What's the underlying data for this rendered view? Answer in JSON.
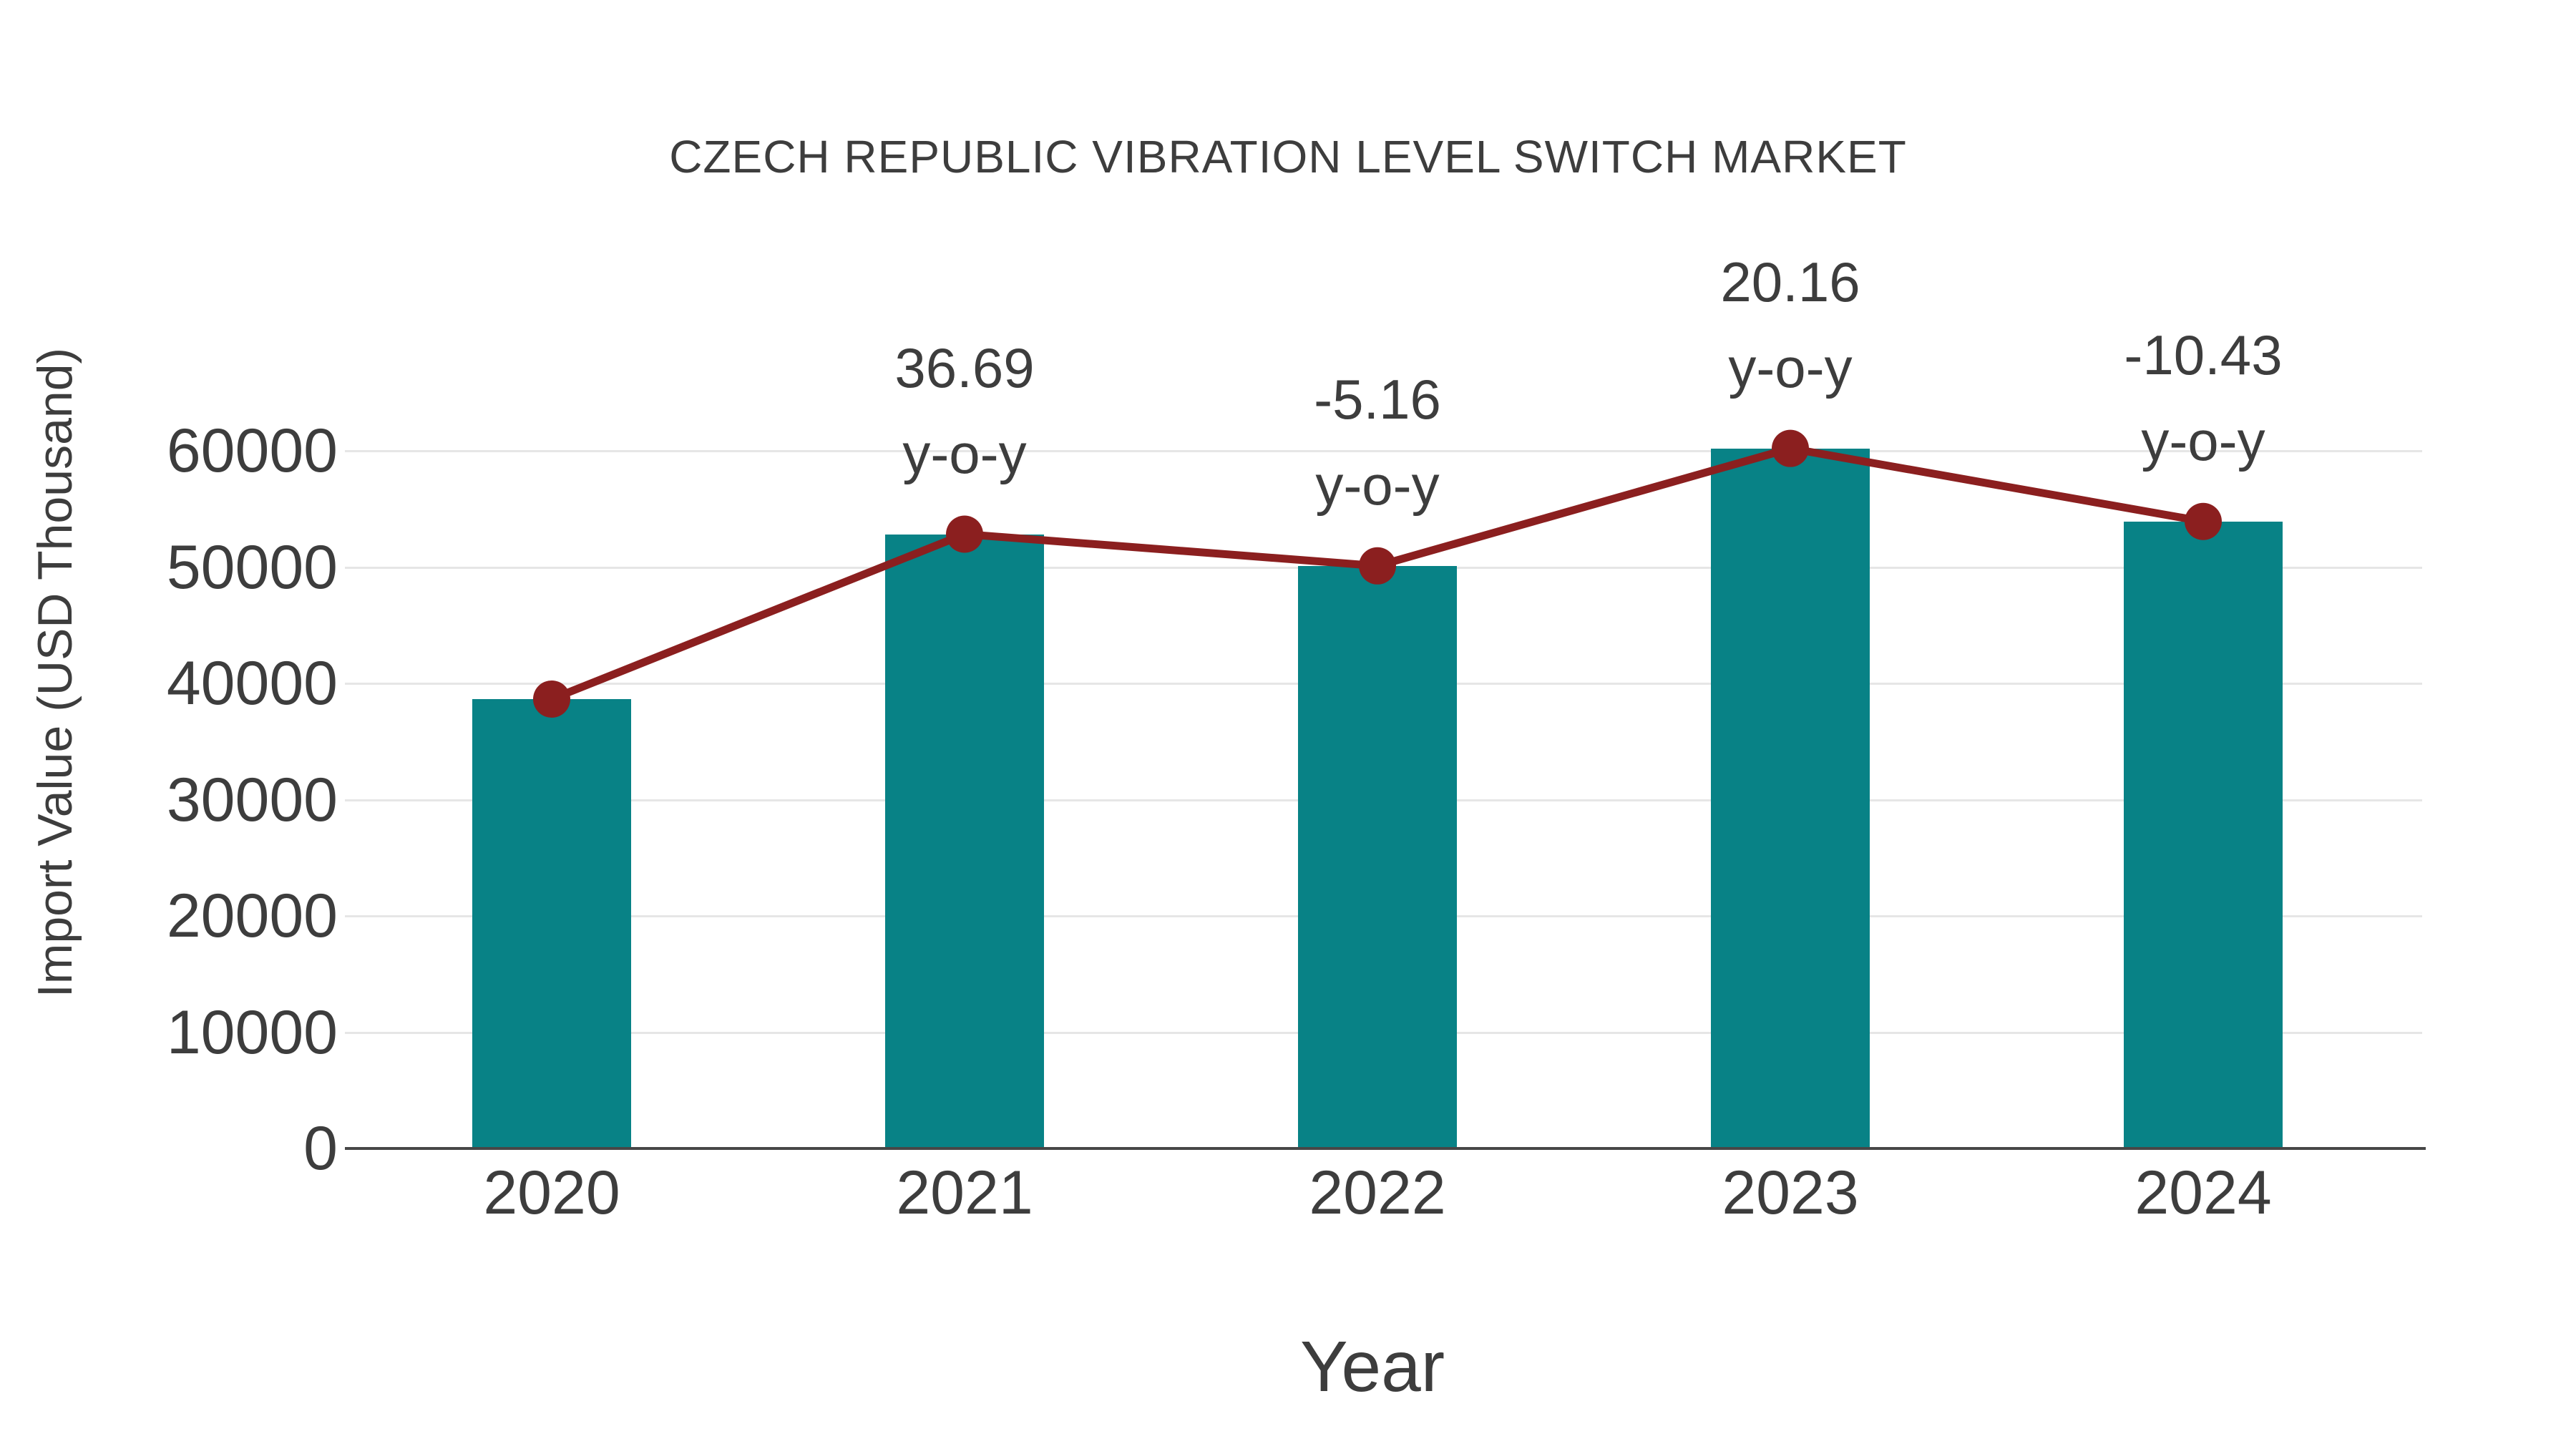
{
  "chart": {
    "title": "CZECH REPUBLIC VIBRATION LEVEL SWITCH MARKET",
    "x_axis_label": "Year",
    "y_axis_label": "Import Value (USD Thousand)"
  },
  "chart_data": {
    "type": "bar",
    "title": "CZECH REPUBLIC VIBRATION LEVEL SWITCH MARKET",
    "xlabel": "Year",
    "ylabel": "Import Value (USD Thousand)",
    "categories": [
      "2020",
      "2021",
      "2022",
      "2023",
      "2024"
    ],
    "series": [
      {
        "name": "Import Value (USD Thousand)",
        "type": "bar",
        "color": "#088286",
        "values": [
          38650,
          52830,
          50105,
          60205,
          53925
        ]
      },
      {
        "name": "Year-over-year trend",
        "type": "line",
        "color": "#8B1F1F",
        "values": [
          38650,
          52830,
          50105,
          60205,
          53925
        ]
      }
    ],
    "annotations": [
      {
        "category": "2021",
        "value": "36.69",
        "label": "y-o-y"
      },
      {
        "category": "2022",
        "value": "-5.16",
        "label": "y-o-y"
      },
      {
        "category": "2023",
        "value": "20.16",
        "label": "y-o-y"
      },
      {
        "category": "2024",
        "value": "-10.43",
        "label": "y-o-y"
      }
    ],
    "y_ticks": [
      0,
      10000,
      20000,
      30000,
      40000,
      50000,
      60000
    ],
    "ylim": [
      0,
      60000
    ],
    "grid": "horizontal-only",
    "legend": "none",
    "colors": {
      "bar": "#088286",
      "line": "#8B1F1F",
      "marker": "#8B1F1F",
      "text": "#3d3d3d",
      "grid": "#e6e6e6",
      "axis": "#474747",
      "background": "#ffffff"
    }
  }
}
